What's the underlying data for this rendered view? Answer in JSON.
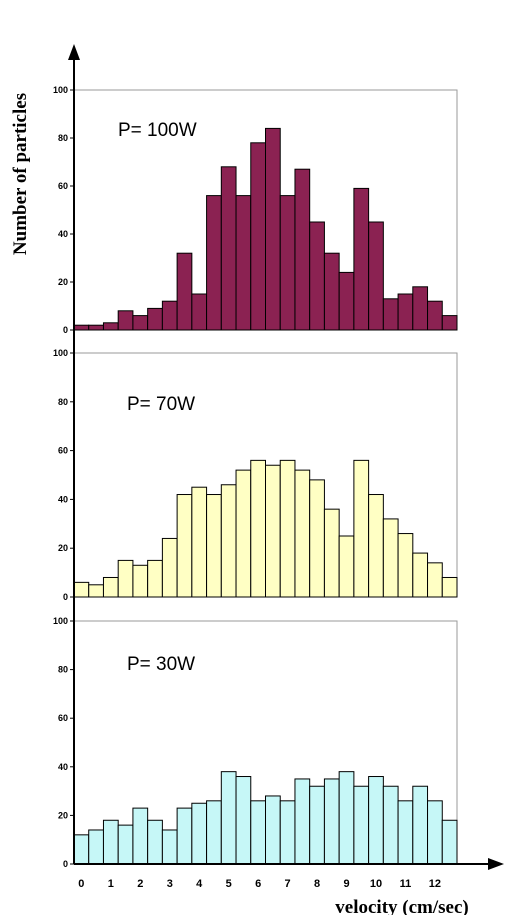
{
  "axes": {
    "ylabel": "Number of particles",
    "xlabel": "velocity (cm/sec)",
    "x_ticks": [
      "0",
      "1",
      "2",
      "3",
      "4",
      "5",
      "6",
      "7",
      "8",
      "9",
      "10",
      "11",
      "12"
    ]
  },
  "chart_data": [
    {
      "type": "bar",
      "annotation": "P= 100W",
      "color": "#8b2252",
      "ylim": [
        0,
        100
      ],
      "y_ticks": [
        0,
        20,
        40,
        60,
        80,
        100
      ],
      "x": [
        0,
        0.5,
        1,
        1.5,
        2,
        2.5,
        3,
        3.5,
        4,
        4.5,
        5,
        5.5,
        6,
        6.5,
        7,
        7.5,
        8,
        8.5,
        9,
        9.5,
        10,
        10.5,
        11,
        11.5,
        12,
        12.5
      ],
      "values": [
        2,
        2,
        3,
        8,
        6,
        9,
        12,
        32,
        15,
        56,
        68,
        56,
        78,
        84,
        56,
        67,
        45,
        32,
        24,
        59,
        45,
        13,
        15,
        18,
        12,
        6
      ]
    },
    {
      "type": "bar",
      "annotation": "P= 70W",
      "color": "#ffffc4",
      "ylim": [
        0,
        100
      ],
      "y_ticks": [
        0,
        20,
        40,
        60,
        80,
        100
      ],
      "x": [
        0,
        0.5,
        1,
        1.5,
        2,
        2.5,
        3,
        3.5,
        4,
        4.5,
        5,
        5.5,
        6,
        6.5,
        7,
        7.5,
        8,
        8.5,
        9,
        9.5,
        10,
        10.5,
        11,
        11.5,
        12,
        12.5
      ],
      "values": [
        6,
        5,
        8,
        15,
        13,
        15,
        24,
        42,
        45,
        42,
        46,
        52,
        56,
        54,
        56,
        52,
        48,
        36,
        25,
        56,
        42,
        32,
        26,
        18,
        14,
        8
      ]
    },
    {
      "type": "bar",
      "annotation": "P= 30W",
      "color": "#c6f7f7",
      "ylim": [
        0,
        100
      ],
      "y_ticks": [
        0,
        20,
        40,
        60,
        80,
        100
      ],
      "x": [
        0,
        0.5,
        1,
        1.5,
        2,
        2.5,
        3,
        3.5,
        4,
        4.5,
        5,
        5.5,
        6,
        6.5,
        7,
        7.5,
        8,
        8.5,
        9,
        9.5,
        10,
        10.5,
        11,
        11.5,
        12,
        12.5
      ],
      "values": [
        12,
        14,
        18,
        16,
        23,
        18,
        14,
        23,
        25,
        26,
        38,
        36,
        26,
        28,
        26,
        35,
        32,
        35,
        38,
        32,
        36,
        32,
        26,
        32,
        26,
        18
      ]
    }
  ]
}
